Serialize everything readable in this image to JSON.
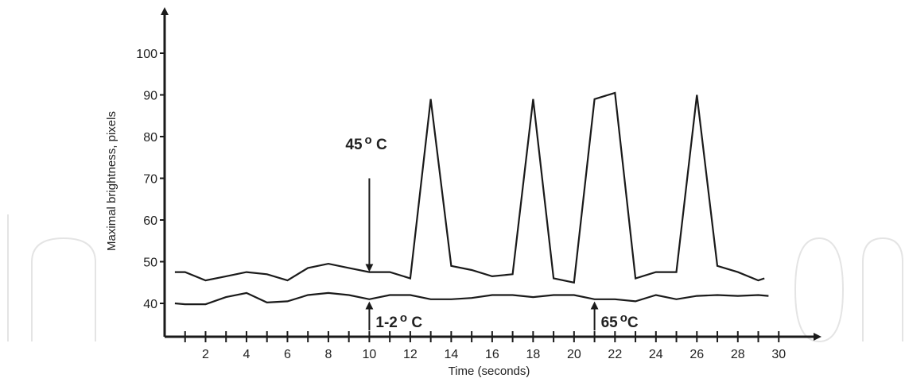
{
  "chart_data": {
    "type": "line",
    "xlabel": "Time (seconds)",
    "ylabel": "Maximal brightness, pixels",
    "xlim": [
      0,
      31
    ],
    "ylim": [
      32,
      108
    ],
    "x_ticks": [
      2,
      4,
      6,
      8,
      10,
      12,
      14,
      16,
      18,
      20,
      22,
      24,
      26,
      28,
      30
    ],
    "x_minor_step": 1,
    "y_ticks": [
      40,
      50,
      60,
      70,
      80,
      90,
      100
    ],
    "grid": false,
    "series": [
      {
        "color": "#1a1a1a",
        "points": [
          [
            0.5,
            47.5
          ],
          [
            1,
            47.5
          ],
          [
            2,
            45.5
          ],
          [
            3,
            46.5
          ],
          [
            4,
            47.5
          ],
          [
            5,
            47
          ],
          [
            6,
            45.5
          ],
          [
            7,
            48.5
          ],
          [
            8,
            49.5
          ],
          [
            9,
            48.5
          ],
          [
            10,
            47.5
          ],
          [
            11,
            47.5
          ],
          [
            12,
            46
          ],
          [
            13,
            89
          ],
          [
            14,
            49
          ],
          [
            15,
            48
          ],
          [
            16,
            46.5
          ],
          [
            17,
            47
          ],
          [
            18,
            89
          ],
          [
            19,
            46
          ],
          [
            20,
            45
          ],
          [
            21,
            89
          ],
          [
            22,
            90.5
          ],
          [
            23,
            46
          ],
          [
            24,
            47.5
          ],
          [
            25,
            47.5
          ],
          [
            26,
            90
          ],
          [
            27,
            49
          ],
          [
            28,
            47.5
          ],
          [
            29,
            45.5
          ],
          [
            29.3,
            46
          ]
        ]
      },
      {
        "color": "#1a1a1a",
        "points": [
          [
            0.5,
            40
          ],
          [
            1,
            39.8
          ],
          [
            2,
            39.8
          ],
          [
            3,
            41.5
          ],
          [
            4,
            42.5
          ],
          [
            5,
            40.2
          ],
          [
            6,
            40.5
          ],
          [
            7,
            42
          ],
          [
            8,
            42.5
          ],
          [
            9,
            42
          ],
          [
            10,
            41
          ],
          [
            11,
            42
          ],
          [
            12,
            42
          ],
          [
            13,
            41
          ],
          [
            14,
            41
          ],
          [
            15,
            41.3
          ],
          [
            16,
            42
          ],
          [
            17,
            42
          ],
          [
            18,
            41.5
          ],
          [
            19,
            42
          ],
          [
            20,
            42
          ],
          [
            21,
            41
          ],
          [
            22,
            41
          ],
          [
            23,
            40.5
          ],
          [
            24,
            42
          ],
          [
            25,
            41
          ],
          [
            26,
            41.8
          ],
          [
            27,
            42
          ],
          [
            28,
            41.8
          ],
          [
            29,
            42
          ],
          [
            29.5,
            41.8
          ]
        ]
      }
    ],
    "annotations": [
      {
        "base": "45",
        "sup": "o",
        "unit": " C",
        "direction": "down",
        "x": 10,
        "arrow_from": 70,
        "arrow_to": 48.5,
        "label_y": 77
      },
      {
        "base": "1-2",
        "sup": "o",
        "unit": " C",
        "direction": "up",
        "x": 10,
        "arrow_from": 33.5,
        "arrow_to": 39.5,
        "label_y": 34.3
      },
      {
        "base": "65",
        "sup": "o",
        "unit": "C",
        "direction": "up",
        "x": 21,
        "arrow_from": 33.5,
        "arrow_to": 39.5,
        "label_y": 34.3
      }
    ]
  }
}
